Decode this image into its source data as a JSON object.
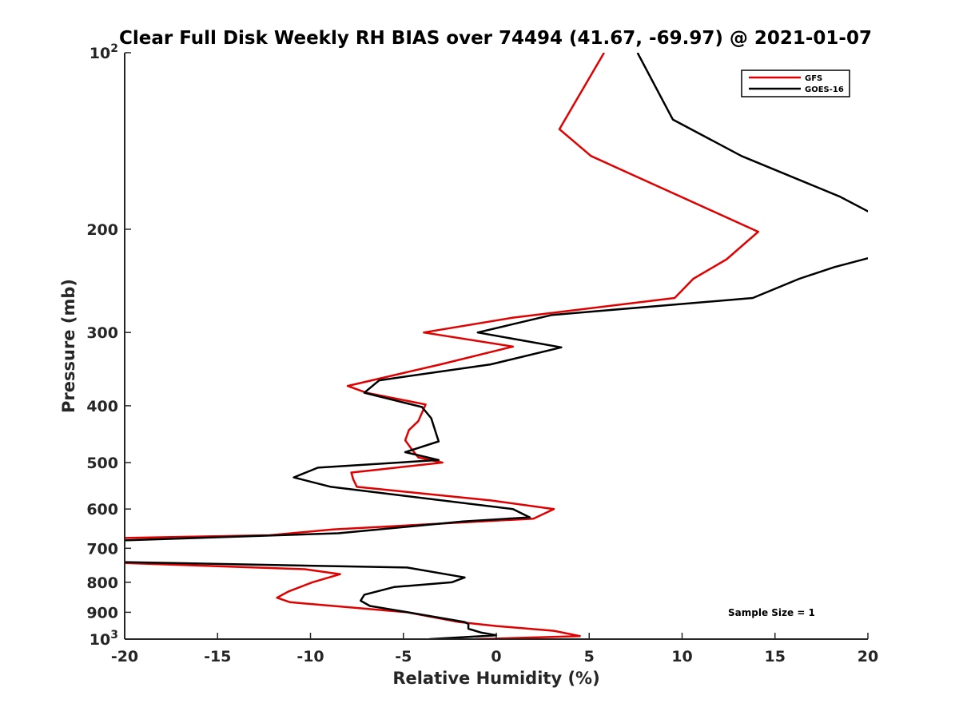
{
  "chart_data": {
    "type": "line",
    "title": "Clear Full Disk Weekly RH BIAS over 74494 (41.67, -69.97) @ 2021-01-07",
    "xlabel": "Relative Humidity (%)",
    "ylabel": "Pressure (mb)",
    "xlim": [
      -20,
      20
    ],
    "ylim": [
      100,
      1000
    ],
    "y_scale": "log",
    "y_reversed": true,
    "x_ticks": [
      "-20",
      "-15",
      "-10",
      "-5",
      "0",
      "5",
      "10",
      "15",
      "20"
    ],
    "y_ticks": [
      {
        "value": 100,
        "base": "10",
        "exp": "2"
      },
      {
        "value": 200,
        "label": "200"
      },
      {
        "value": 300,
        "label": "300"
      },
      {
        "value": 400,
        "label": "400"
      },
      {
        "value": 500,
        "label": "500"
      },
      {
        "value": 600,
        "label": "600"
      },
      {
        "value": 700,
        "label": "700"
      },
      {
        "value": 800,
        "label": "800"
      },
      {
        "value": 900,
        "label": "900"
      },
      {
        "value": 1000,
        "base": "10",
        "exp": "3"
      }
    ],
    "legend_position": "top-right",
    "annotation": "Sample Size = 1",
    "series": [
      {
        "name": "GFS",
        "color": "#e00000",
        "points": [
          [
            5.8,
            100
          ],
          [
            3.4,
            135
          ],
          [
            5.1,
            150
          ],
          [
            14.1,
            202
          ],
          [
            12.4,
            225
          ],
          [
            10.6,
            243
          ],
          [
            9.6,
            262
          ],
          [
            0.9,
            283
          ],
          [
            -3.9,
            300
          ],
          [
            0.9,
            317
          ],
          [
            -3.0,
            340
          ],
          [
            -8.0,
            370
          ],
          [
            -7.0,
            380
          ],
          [
            -3.8,
            398
          ],
          [
            -4.2,
            425
          ],
          [
            -4.7,
            440
          ],
          [
            -4.9,
            458
          ],
          [
            -4.6,
            472
          ],
          [
            -4.2,
            490
          ],
          [
            -2.9,
            500
          ],
          [
            -6.6,
            515
          ],
          [
            -7.8,
            520
          ],
          [
            -7.7,
            534
          ],
          [
            -7.5,
            550
          ],
          [
            -0.3,
            580
          ],
          [
            3.1,
            600
          ],
          [
            2.0,
            623
          ],
          [
            -8.8,
            650
          ],
          [
            -12.2,
            665
          ],
          [
            -21.0,
            673
          ],
          [
            -21.0,
            740
          ],
          [
            -10.3,
            760
          ],
          [
            -8.4,
            775
          ],
          [
            -9.9,
            800
          ],
          [
            -11.2,
            830
          ],
          [
            -11.8,
            850
          ],
          [
            -11.1,
            865
          ],
          [
            -4.8,
            900
          ],
          [
            -2.0,
            935
          ],
          [
            0.0,
            950
          ],
          [
            3.1,
            968
          ],
          [
            4.5,
            988
          ],
          [
            -1.1,
            1000
          ]
        ]
      },
      {
        "name": "GOES-16",
        "color": "#000000",
        "points": [
          [
            7.6,
            100
          ],
          [
            9.5,
            130
          ],
          [
            13.2,
            150
          ],
          [
            18.5,
            176
          ],
          [
            20.5,
            190
          ],
          [
            20.5,
            222
          ],
          [
            18.2,
            232
          ],
          [
            16.3,
            243
          ],
          [
            13.8,
            262
          ],
          [
            3.0,
            280
          ],
          [
            -1.0,
            300
          ],
          [
            3.5,
            318
          ],
          [
            -0.3,
            340
          ],
          [
            -6.3,
            362
          ],
          [
            -7.1,
            380
          ],
          [
            -4.0,
            402
          ],
          [
            -3.5,
            420
          ],
          [
            -3.2,
            450
          ],
          [
            -3.1,
            460
          ],
          [
            -4.9,
            480
          ],
          [
            -3.1,
            495
          ],
          [
            -9.6,
            510
          ],
          [
            -10.9,
            530
          ],
          [
            -8.9,
            550
          ],
          [
            0.9,
            600
          ],
          [
            1.8,
            620
          ],
          [
            -1.8,
            630
          ],
          [
            -8.5,
            660
          ],
          [
            -21.0,
            680
          ],
          [
            -21.0,
            738
          ],
          [
            -4.8,
            755
          ],
          [
            -1.7,
            785
          ],
          [
            -2.4,
            800
          ],
          [
            -5.5,
            815
          ],
          [
            -7.1,
            840
          ],
          [
            -7.3,
            860
          ],
          [
            -6.8,
            878
          ],
          [
            -4.3,
            905
          ],
          [
            -1.7,
            935
          ],
          [
            -1.5,
            942
          ],
          [
            -1.5,
            960
          ],
          [
            -0.8,
            975
          ],
          [
            0.0,
            985
          ],
          [
            -3.6,
            1000
          ]
        ]
      }
    ]
  }
}
